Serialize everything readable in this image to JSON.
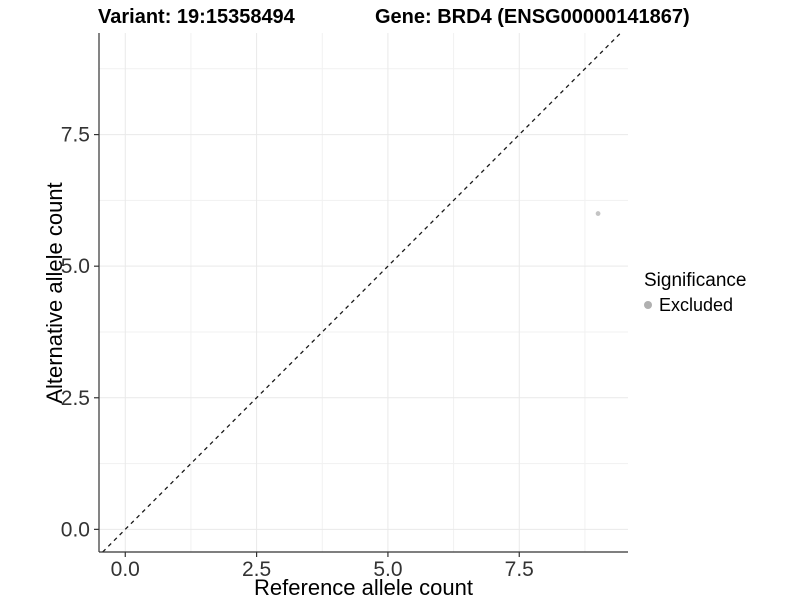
{
  "chart_data": {
    "type": "scatter",
    "titles": {
      "variant": "Variant: 19:15358494",
      "gene": "Gene: BRD4 (ENSG00000141867)"
    },
    "xlabel": "Reference allele count",
    "ylabel": "Alternative allele count",
    "xlim": [
      -0.5,
      9.57
    ],
    "ylim": [
      -0.43,
      9.43
    ],
    "x_ticks": [
      {
        "v": 0,
        "label": "0.0"
      },
      {
        "v": 2.5,
        "label": "2.5"
      },
      {
        "v": 5,
        "label": "5.0"
      },
      {
        "v": 7.5,
        "label": "7.5"
      }
    ],
    "y_ticks": [
      {
        "v": 0,
        "label": "0.0"
      },
      {
        "v": 2.5,
        "label": "2.5"
      },
      {
        "v": 5,
        "label": "5.0"
      },
      {
        "v": 7.5,
        "label": "7.5"
      }
    ],
    "x_minor": [
      1.25,
      3.75,
      6.25,
      8.75
    ],
    "y_minor": [
      1.25,
      3.75,
      6.25,
      8.75
    ],
    "grid": true,
    "reference_line": {
      "type": "identity",
      "style": "dashed"
    },
    "series": [
      {
        "name": "Excluded",
        "color": "#c4c4c4",
        "points": [
          {
            "x": 9,
            "y": 6
          }
        ]
      }
    ],
    "legend": {
      "title": "Significance",
      "position": "right",
      "items": [
        {
          "label": "Excluded",
          "color": "#b0b0b0"
        }
      ]
    },
    "style": {
      "grid_major": "#e9e9e9",
      "grid_minor": "#f1f1f1",
      "axis": "#333333",
      "ref_line": "#1a1a1a",
      "tick_text": "#333333",
      "background": "#ffffff"
    }
  }
}
